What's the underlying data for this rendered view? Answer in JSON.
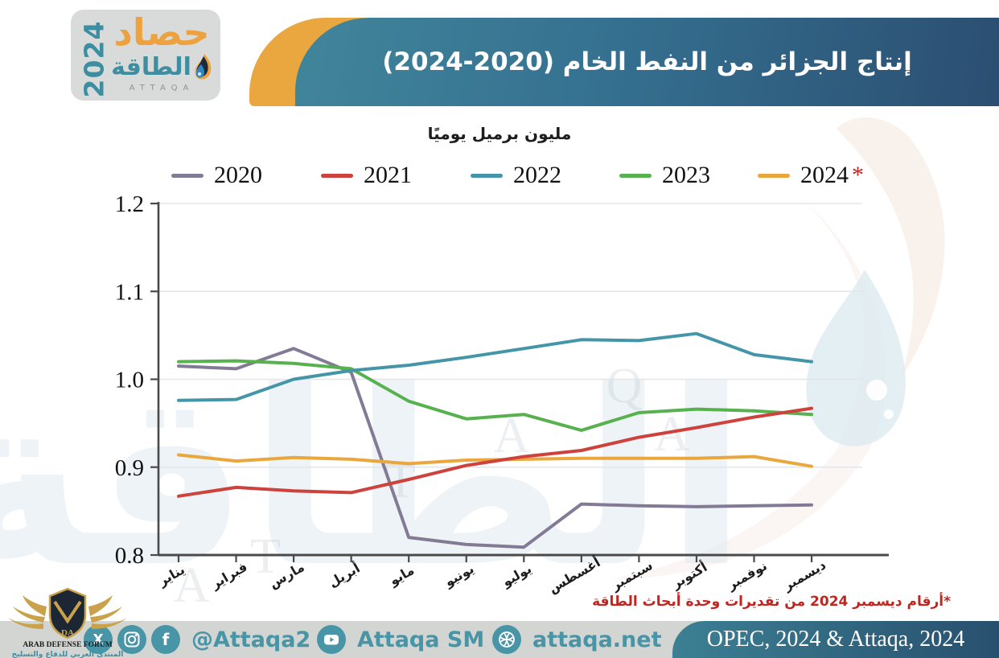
{
  "header": {
    "logo": {
      "line1": "حصاد",
      "line2": "الطاقة",
      "year": "2024",
      "brand": "ATTAQA"
    },
    "title": "إنتاج الجزائر من النفط الخام (2020-2024)"
  },
  "chart_data": {
    "type": "line",
    "title": "إنتاج الجزائر من النفط الخام (2020-2024)",
    "unit_label": "مليون برميل يوميًا",
    "categories": [
      "يناير",
      "فبراير",
      "مارس",
      "أبريل",
      "مايو",
      "يونيو",
      "يوليو",
      "أغسطس",
      "سبتمبر",
      "أكتوبر",
      "نوفمبر",
      "ديسمبر"
    ],
    "series": [
      {
        "name": "2020",
        "color": "#837a95",
        "values": [
          1.015,
          1.012,
          1.035,
          1.008,
          0.82,
          0.812,
          0.809,
          0.858,
          0.856,
          0.855,
          0.856,
          0.857
        ]
      },
      {
        "name": "2021",
        "color": "#cd423c",
        "values": [
          0.867,
          0.877,
          0.873,
          0.871,
          0.886,
          0.902,
          0.912,
          0.919,
          0.934,
          0.945,
          0.957,
          0.967
        ]
      },
      {
        "name": "2022",
        "color": "#4595a8",
        "values": [
          0.976,
          0.977,
          1.0,
          1.01,
          1.016,
          1.025,
          1.035,
          1.045,
          1.044,
          1.052,
          1.028,
          1.02
        ]
      },
      {
        "name": "2023",
        "color": "#58b14f",
        "values": [
          1.02,
          1.021,
          1.018,
          1.012,
          0.975,
          0.955,
          0.96,
          0.942,
          0.962,
          0.966,
          0.964,
          0.96
        ]
      },
      {
        "name": "2024",
        "color": "#e9a73e",
        "values": [
          0.914,
          0.907,
          0.911,
          0.909,
          0.904,
          0.908,
          0.909,
          0.91,
          0.91,
          0.91,
          0.912,
          0.901
        ],
        "note_mark": "*"
      }
    ],
    "ylim": [
      0.8,
      1.2
    ],
    "yticks": [
      1.2,
      1.1,
      1.0,
      0.9,
      0.8
    ],
    "grid": true,
    "legend_position": "top"
  },
  "footnote": "*أرقام ديسمبر 2024 من تقديرات وحدة أبحاث الطاقة",
  "footer": {
    "social_handle": "@Attaqa2",
    "youtube_handle": "Attaqa SM",
    "website": "attaqa.net",
    "source": "OPEC, 2024 & Attaqa, 2024"
  },
  "watermark": {
    "adf_title": "ARAB DEFENSE FORUM",
    "adf_subtitle": "المنتدى العربي للدفاع والتسليح",
    "attaqa_word": "الطاقة",
    "attaqa_letters": [
      "T",
      "A",
      "Q",
      "A",
      "A",
      "T"
    ]
  },
  "colors": {
    "banner_teal_start": "#41859b",
    "banner_teal_end": "#2b4e71",
    "banner_orange": "#eaa63f",
    "footer_gray": "#d2d5d2",
    "accent_teal": "#4795a6",
    "footnote_red": "#c0251f",
    "axis": "#4a4a4a",
    "grid": "#e3e6e8"
  }
}
